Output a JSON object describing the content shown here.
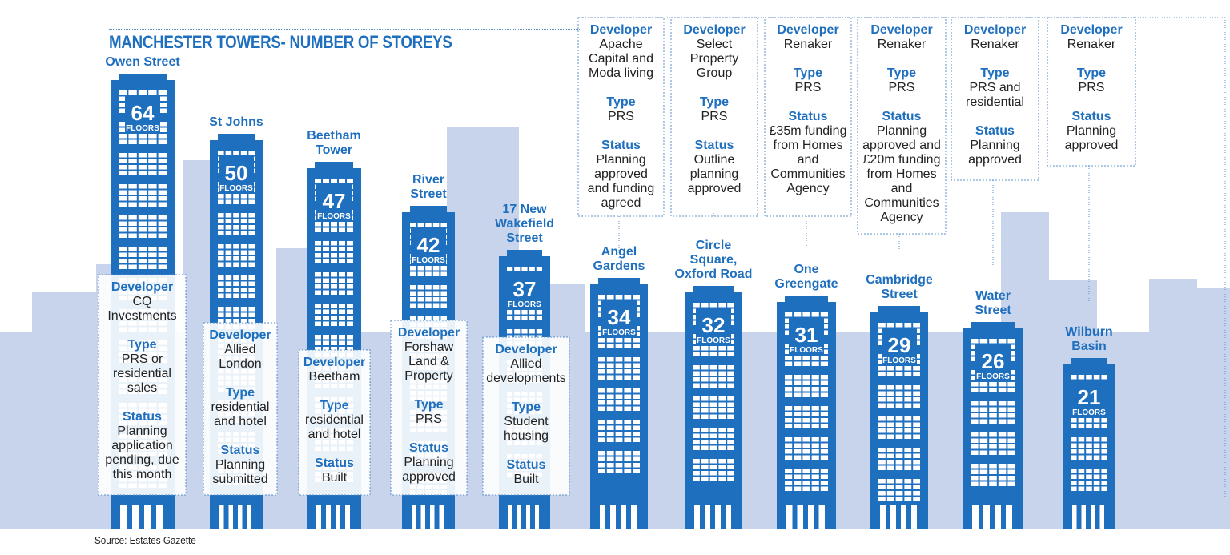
{
  "title": "MANCHESTER TOWERS- NUMBER OF STOREYS",
  "source": "Source: Estates Gazette",
  "colors": {
    "tower": "#1f6fbf",
    "tower_dark": "#175aa0",
    "window": "#ffffff",
    "skyline": "#c8d4ec",
    "label": "#1f6fbf",
    "text": "#222222",
    "box_border": "#5b8fc9"
  },
  "chart_data": {
    "type": "bar",
    "title": "MANCHESTER TOWERS- NUMBER OF STOREYS",
    "unit_label": "FLOORS",
    "categories": [
      "Owen Street",
      "St Johns",
      "Beetham Tower",
      "River Street",
      "17 New Wakefield Street",
      "Angel Gardens",
      "Circle Square, Oxford Road",
      "One Greengate",
      "Cambridge Street",
      "Water Street",
      "Wilburn Basin"
    ],
    "values": [
      64,
      50,
      47,
      42,
      37,
      34,
      32,
      31,
      29,
      26,
      21
    ],
    "towers": [
      {
        "name_lines": [
          "Owen Street"
        ],
        "floors": 64,
        "unit": "FLOORS",
        "developer_label": "Developer",
        "developer": [
          "CQ",
          "Investments"
        ],
        "type_label": "Type",
        "type": [
          "PRS or",
          "residential",
          "sales"
        ],
        "status_label": "Status",
        "status": [
          "Planning",
          "application",
          "pending, due",
          "this month"
        ]
      },
      {
        "name_lines": [
          "St Johns"
        ],
        "floors": 50,
        "unit": "FLOORS",
        "developer_label": "Developer",
        "developer": [
          "Allied",
          "London"
        ],
        "type_label": "Type",
        "type": [
          "residential",
          "and hotel"
        ],
        "status_label": "Status",
        "status": [
          "Planning",
          "submitted"
        ]
      },
      {
        "name_lines": [
          "Beetham",
          "Tower"
        ],
        "floors": 47,
        "unit": "FLOORS",
        "developer_label": "Developer",
        "developer": [
          "Beetham"
        ],
        "type_label": "Type",
        "type": [
          "residential",
          "and hotel"
        ],
        "status_label": "Status",
        "status": [
          "Built"
        ]
      },
      {
        "name_lines": [
          "River",
          "Street"
        ],
        "floors": 42,
        "unit": "FLOORS",
        "developer_label": "Developer",
        "developer": [
          "Forshaw",
          "Land  &",
          "Property"
        ],
        "type_label": "Type",
        "type": [
          "PRS"
        ],
        "status_label": "Status",
        "status": [
          "Planning",
          "approved"
        ]
      },
      {
        "name_lines": [
          "17 New",
          "Wakefield",
          "Street"
        ],
        "floors": 37,
        "unit": "FLOORS",
        "developer_label": "Developer",
        "developer": [
          "Allied",
          "developments"
        ],
        "type_label": "Type",
        "type": [
          "Student",
          "housing"
        ],
        "status_label": "Status",
        "status": [
          "Built"
        ]
      },
      {
        "name_lines": [
          "Angel",
          "Gardens"
        ],
        "floors": 34,
        "unit": "FLOORS",
        "developer_label": "Developer",
        "developer": [
          "Apache",
          "Capital and",
          "Moda living"
        ],
        "type_label": "Type",
        "type": [
          "PRS"
        ],
        "status_label": "Status",
        "status": [
          "Planning",
          "approved",
          "and funding",
          "agreed"
        ]
      },
      {
        "name_lines": [
          "Circle",
          "Square,",
          "Oxford Road"
        ],
        "floors": 32,
        "unit": "FLOORS",
        "developer_label": "Developer",
        "developer": [
          "Select",
          "Property",
          "Group"
        ],
        "type_label": "Type",
        "type": [
          "PRS"
        ],
        "status_label": "Status",
        "status": [
          "Outline",
          "planning",
          "approved"
        ]
      },
      {
        "name_lines": [
          "One",
          "Greengate"
        ],
        "floors": 31,
        "unit": "FLOORS",
        "developer_label": "Developer",
        "developer": [
          "Renaker"
        ],
        "type_label": "Type",
        "type": [
          "PRS"
        ],
        "status_label": "Status",
        "status": [
          "£35m funding",
          "from Homes",
          "and",
          "Communities",
          "Agency"
        ]
      },
      {
        "name_lines": [
          "Cambridge",
          "Street"
        ],
        "floors": 29,
        "unit": "FLOORS",
        "developer_label": "Developer",
        "developer": [
          "Renaker"
        ],
        "type_label": "Type",
        "type": [
          "PRS"
        ],
        "status_label": "Status",
        "status": [
          "Planning",
          "approved and",
          "£20m funding",
          "from Homes",
          "and",
          "Communities",
          "Agency"
        ]
      },
      {
        "name_lines": [
          "Water",
          "Street"
        ],
        "floors": 26,
        "unit": "FLOORS",
        "developer_label": "Developer",
        "developer": [
          "Renaker"
        ],
        "type_label": "Type",
        "type": [
          "PRS and",
          "residential"
        ],
        "status_label": "Status",
        "status": [
          "Planning",
          "approved"
        ]
      },
      {
        "name_lines": [
          "Wilburn",
          "Basin"
        ],
        "floors": 21,
        "unit": "FLOORS",
        "developer_label": "Developer",
        "developer": [
          "Renaker"
        ],
        "type_label": "Type",
        "type": [
          "PRS"
        ],
        "status_label": "Status",
        "status": [
          "Planning",
          "approved"
        ]
      }
    ]
  }
}
